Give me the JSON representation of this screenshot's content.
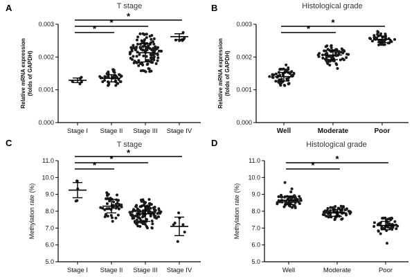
{
  "chart_data": [
    {
      "panel": "A",
      "type": "scatter",
      "title": "T stage",
      "ylabel": "Relative mRNA expression\n(folds of GAPDH)",
      "ylim": [
        0,
        0.003
      ],
      "yticks": [
        "0.000",
        "0.001",
        "0.002",
        "0.003"
      ],
      "categories": [
        "Stage I",
        "Stage II",
        "Stage III",
        "Stage IV"
      ],
      "groups": [
        {
          "name": "Stage I",
          "n": 5,
          "mean": 0.00129,
          "sd": 7e-05,
          "min": 0.00118,
          "max": 0.00138
        },
        {
          "name": "Stage II",
          "n": 45,
          "mean": 0.00135,
          "sd": 0.00011,
          "min": 0.00113,
          "max": 0.00162
        },
        {
          "name": "Stage III",
          "n": 120,
          "mean": 0.00213,
          "sd": 0.00028,
          "min": 0.00155,
          "max": 0.00271
        },
        {
          "name": "Stage IV",
          "n": 7,
          "mean": 0.00262,
          "sd": 9e-05,
          "min": 0.0025,
          "max": 0.00275
        }
      ],
      "significance": [
        {
          "from": 0,
          "to": 1,
          "label": "*"
        },
        {
          "from": 0,
          "to": 2,
          "label": "*"
        },
        {
          "from": 0,
          "to": 3,
          "label": "*"
        }
      ]
    },
    {
      "panel": "B",
      "type": "scatter",
      "title": "Histological grade",
      "ylabel": "Relative mRNA expression\n(folds of GAPDH)",
      "ylim": [
        0,
        0.003
      ],
      "yticks": [
        "0.000",
        "0.001",
        "0.002",
        "0.003"
      ],
      "categories": [
        "Well",
        "Moderate",
        "Poor"
      ],
      "groups": [
        {
          "name": "Well",
          "n": 60,
          "mean": 0.0014,
          "sd": 0.00013,
          "min": 0.00113,
          "max": 0.00176
        },
        {
          "name": "Moderate",
          "n": 70,
          "mean": 0.00206,
          "sd": 0.00014,
          "min": 0.00165,
          "max": 0.00235
        },
        {
          "name": "Poor",
          "n": 45,
          "mean": 0.00254,
          "sd": 0.0001,
          "min": 0.00237,
          "max": 0.00278
        }
      ],
      "significance": [
        {
          "from": 0,
          "to": 1,
          "label": "*"
        },
        {
          "from": 0,
          "to": 2,
          "label": "*"
        }
      ]
    },
    {
      "panel": "C",
      "type": "scatter",
      "title": "T stage",
      "ylabel": "Methylation rate (%)",
      "ylim": [
        5.0,
        11.0
      ],
      "yticks": [
        "5.0",
        "6.0",
        "7.0",
        "8.0",
        "9.0",
        "10.0",
        "11.0"
      ],
      "categories": [
        "Stage I",
        "Stage II",
        "Stage III",
        "Stage IV"
      ],
      "groups": [
        {
          "name": "Stage I",
          "n": 5,
          "mean": 9.25,
          "sd": 0.45,
          "min": 8.6,
          "max": 9.8
        },
        {
          "name": "Stage II",
          "n": 45,
          "mean": 8.3,
          "sd": 0.4,
          "min": 7.4,
          "max": 9.1
        },
        {
          "name": "Stage III",
          "n": 120,
          "mean": 7.85,
          "sd": 0.45,
          "min": 7.0,
          "max": 8.7
        },
        {
          "name": "Stage IV",
          "n": 7,
          "mean": 7.1,
          "sd": 0.55,
          "min": 6.2,
          "max": 7.9
        }
      ],
      "significance": [
        {
          "from": 0,
          "to": 1,
          "label": "*"
        },
        {
          "from": 0,
          "to": 2,
          "label": "*"
        },
        {
          "from": 0,
          "to": 3,
          "label": "*"
        }
      ]
    },
    {
      "panel": "D",
      "type": "scatter",
      "title": "Histological grade",
      "ylabel": "Methylation rate (%)",
      "ylim": [
        5.0,
        11.0
      ],
      "yticks": [
        "5.0",
        "6.0",
        "7.0",
        "8.0",
        "9.0",
        "10.0",
        "11.0"
      ],
      "categories": [
        "Well",
        "Moderate",
        "Poor"
      ],
      "groups": [
        {
          "name": "Well",
          "n": 60,
          "mean": 8.65,
          "sd": 0.25,
          "min": 8.2,
          "max": 9.7
        },
        {
          "name": "Moderate",
          "n": 70,
          "mean": 7.9,
          "sd": 0.2,
          "min": 7.5,
          "max": 8.3
        },
        {
          "name": "Poor",
          "n": 45,
          "mean": 7.15,
          "sd": 0.25,
          "min": 6.1,
          "max": 7.6
        }
      ],
      "significance": [
        {
          "from": 0,
          "to": 1,
          "label": "*"
        },
        {
          "from": 0,
          "to": 2,
          "label": "*"
        }
      ]
    }
  ]
}
